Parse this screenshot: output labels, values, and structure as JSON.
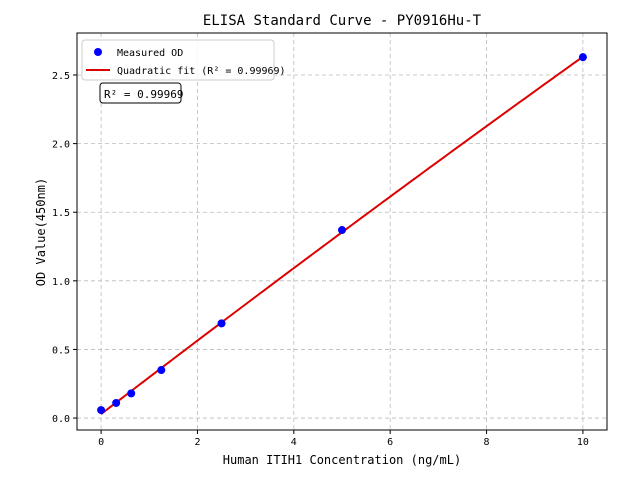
{
  "chart_data": {
    "type": "scatter",
    "title": "ELISA Standard Curve - PY0916Hu-T",
    "xlabel": "Human ITIH1 Concentration (ng/mL)",
    "ylabel": "OD Value(450nm)",
    "xlim": [
      -0.5,
      10.5
    ],
    "ylim": [
      -0.087,
      2.806
    ],
    "xticks": [
      0,
      2,
      4,
      6,
      8,
      10
    ],
    "yticks": [
      0.0,
      0.5,
      1.0,
      1.5,
      2.0,
      2.5
    ],
    "grid": true,
    "legend_placement": "top-left",
    "series": [
      {
        "name": "Measured OD",
        "kind": "points",
        "color": "#0000ff",
        "x": [
          0,
          0.3125,
          0.625,
          1.25,
          2.5,
          5,
          10
        ],
        "y": [
          0.058,
          0.11,
          0.18,
          0.35,
          0.69,
          1.37,
          2.63
        ]
      },
      {
        "name": "Quadratic fit (R² = 0.99969)",
        "kind": "fit",
        "color": "#dd0000"
      }
    ],
    "annotation": "R² = 0.99969"
  }
}
